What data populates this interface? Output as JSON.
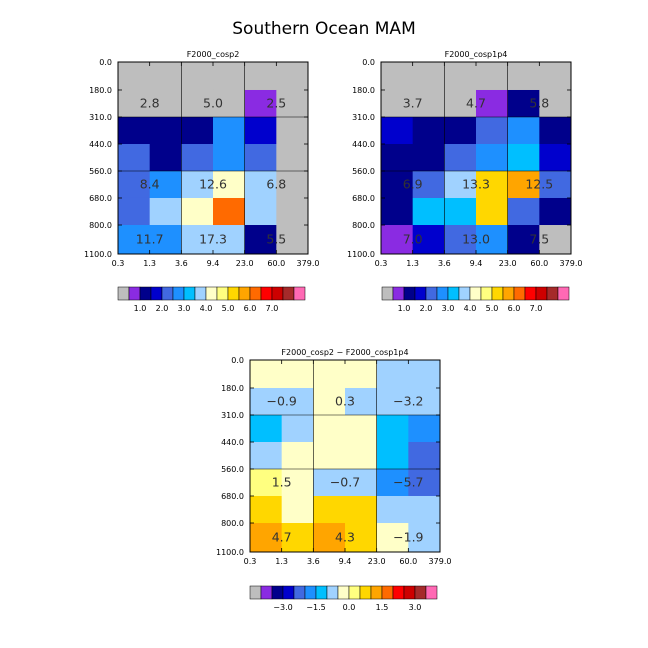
{
  "title": "Southern Ocean MAM",
  "x_tick_labels": [
    "0.3",
    "1.3",
    "3.6",
    "9.4",
    "23.0",
    "60.0",
    "379.0"
  ],
  "y_tick_labels": [
    "0.0",
    "180.0",
    "310.0",
    "440.0",
    "560.0",
    "680.0",
    "800.0",
    "1100.0"
  ],
  "colorbar_abs": {
    "colors": [
      "#bebebe",
      "#8a2be2",
      "#00008b",
      "#0000cd",
      "#4169e1",
      "#1e90ff",
      "#00bfff",
      "#a0d2ff",
      "#ffffc8",
      "#ffff80",
      "#ffd700",
      "#ffa500",
      "#ff6a00",
      "#ff0000",
      "#cd0000",
      "#a52a2a",
      "#ff69b4"
    ],
    "labels": [
      "1.0",
      "2.0",
      "3.0",
      "4.0",
      "5.0",
      "6.0",
      "7.0"
    ]
  },
  "colorbar_diff": {
    "colors": [
      "#bebebe",
      "#8a2be2",
      "#00008b",
      "#0000cd",
      "#4169e1",
      "#1e90ff",
      "#00bfff",
      "#a0d2ff",
      "#ffffc8",
      "#ffff80",
      "#ffd700",
      "#ffa500",
      "#ff6a00",
      "#ff0000",
      "#cd0000",
      "#a52a2a",
      "#ff69b4"
    ],
    "labels": [
      "−3.0",
      "−1.5",
      "0.0",
      "1.5",
      "3.0"
    ]
  },
  "chart_data": [
    {
      "type": "heatmap",
      "title": "F2000_cosp2",
      "x_bin_edges": [
        "0.3",
        "1.3",
        "3.6",
        "9.4",
        "23.0",
        "60.0",
        "379.0"
      ],
      "y_bin_edges": [
        "0.0",
        "180.0",
        "310.0",
        "440.0",
        "560.0",
        "680.0",
        "800.0",
        "1100.0"
      ],
      "color_index": [
        [
          0,
          0,
          0,
          0,
          1,
          0
        ],
        [
          2,
          2,
          2,
          5,
          3,
          0
        ],
        [
          4,
          2,
          4,
          5,
          4,
          0
        ],
        [
          4,
          5,
          7,
          8,
          7,
          0
        ],
        [
          4,
          7,
          8,
          12,
          7,
          0
        ],
        [
          5,
          5,
          7,
          7,
          2,
          0
        ]
      ],
      "color_index_note": "rows top to bottom: 180-310,310-440,440-560,560-680,680-800,800-1100; row 0-180 is grey",
      "group_labels": [
        {
          "value": "2.8",
          "col_group": 0,
          "row_group": 0
        },
        {
          "value": "5.0",
          "col_group": 1,
          "row_group": 0
        },
        {
          "value": "2.5",
          "col_group": 2,
          "row_group": 0
        },
        {
          "value": "8.4",
          "col_group": 0,
          "row_group": 1
        },
        {
          "value": "12.6",
          "col_group": 1,
          "row_group": 1
        },
        {
          "value": "6.8",
          "col_group": 2,
          "row_group": 1
        },
        {
          "value": "11.7",
          "col_group": 0,
          "row_group": 2
        },
        {
          "value": "17.3",
          "col_group": 1,
          "row_group": 2
        },
        {
          "value": "5.5",
          "col_group": 2,
          "row_group": 2
        }
      ]
    },
    {
      "type": "heatmap",
      "title": "F2000_cosp1p4",
      "x_bin_edges": [
        "0.3",
        "1.3",
        "3.6",
        "9.4",
        "23.0",
        "60.0",
        "379.0"
      ],
      "y_bin_edges": [
        "0.0",
        "180.0",
        "310.0",
        "440.0",
        "560.0",
        "680.0",
        "800.0",
        "1100.0"
      ],
      "color_index": [
        [
          0,
          0,
          0,
          1,
          2,
          0
        ],
        [
          3,
          2,
          2,
          4,
          5,
          2
        ],
        [
          2,
          2,
          4,
          5,
          6,
          3
        ],
        [
          2,
          4,
          7,
          10,
          11,
          4
        ],
        [
          2,
          6,
          6,
          10,
          4,
          2
        ],
        [
          1,
          3,
          4,
          5,
          2,
          0
        ]
      ],
      "group_labels": [
        {
          "value": "3.7",
          "col_group": 0,
          "row_group": 0
        },
        {
          "value": "4.7",
          "col_group": 1,
          "row_group": 0
        },
        {
          "value": "5.8",
          "col_group": 2,
          "row_group": 0
        },
        {
          "value": "6.9",
          "col_group": 0,
          "row_group": 1
        },
        {
          "value": "13.3",
          "col_group": 1,
          "row_group": 1
        },
        {
          "value": "12.5",
          "col_group": 2,
          "row_group": 1
        },
        {
          "value": "7.0",
          "col_group": 0,
          "row_group": 2
        },
        {
          "value": "13.0",
          "col_group": 1,
          "row_group": 2
        },
        {
          "value": "7.5",
          "col_group": 2,
          "row_group": 2
        }
      ]
    },
    {
      "type": "heatmap",
      "title": "F2000_cosp2 − F2000_cosp1p4",
      "x_bin_edges": [
        "0.3",
        "1.3",
        "3.6",
        "9.4",
        "23.0",
        "60.0",
        "379.0"
      ],
      "y_bin_edges": [
        "0.0",
        "180.0",
        "310.0",
        "440.0",
        "560.0",
        "680.0",
        "800.0",
        "1100.0"
      ],
      "color_index": [
        [
          8,
          8,
          8,
          8,
          7,
          7
        ],
        [
          7,
          7,
          8,
          7,
          7,
          7
        ],
        [
          6,
          7,
          8,
          8,
          6,
          5
        ],
        [
          7,
          8,
          8,
          8,
          6,
          4
        ],
        [
          9,
          8,
          7,
          7,
          5,
          4
        ],
        [
          10,
          8,
          10,
          10,
          7,
          7
        ],
        [
          11,
          10,
          11,
          10,
          8,
          7
        ]
      ],
      "color_index_note": "rows top to bottom: 0-180,180-310,310-440,440-560,560-680,680-800,800-1100",
      "group_labels": [
        {
          "value": "−0.9",
          "col_group": 0,
          "row_group": 0
        },
        {
          "value": "0.3",
          "col_group": 1,
          "row_group": 0
        },
        {
          "value": "−3.2",
          "col_group": 2,
          "row_group": 0
        },
        {
          "value": "1.5",
          "col_group": 0,
          "row_group": 1
        },
        {
          "value": "−0.7",
          "col_group": 1,
          "row_group": 1
        },
        {
          "value": "−5.7",
          "col_group": 2,
          "row_group": 1
        },
        {
          "value": "4.7",
          "col_group": 0,
          "row_group": 2
        },
        {
          "value": "4.3",
          "col_group": 1,
          "row_group": 2
        },
        {
          "value": "−1.9",
          "col_group": 2,
          "row_group": 2
        }
      ]
    }
  ]
}
